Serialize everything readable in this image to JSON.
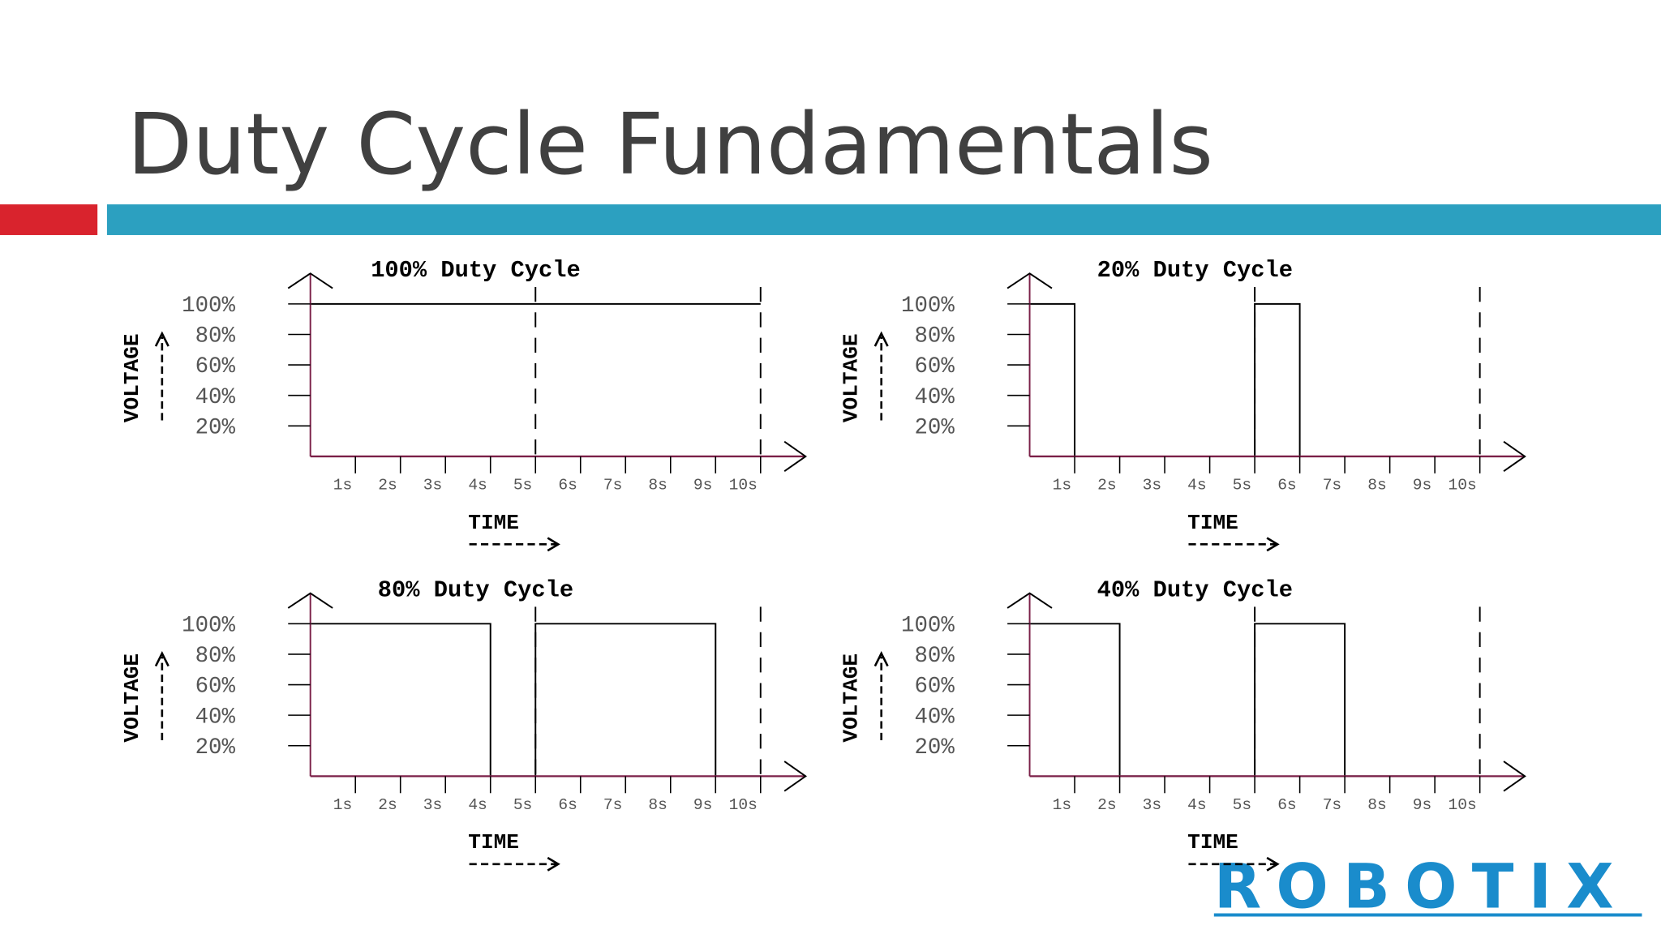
{
  "slide": {
    "title": "Duty Cycle Fundamentals",
    "logo": "ROBOTIX"
  },
  "chart_data": [
    {
      "type": "line",
      "title": "100% Duty Cycle",
      "y_label": "VOLTAGE",
      "x_label": "TIME",
      "x": [
        0,
        10
      ],
      "series": [
        {
          "color": "#000000",
          "values": [
            100,
            100
          ]
        }
      ],
      "period_marks": [
        5,
        10
      ],
      "axis_color": "#7b2048",
      "xlim": [
        0,
        11
      ],
      "xticks": [
        {
          "value": 1,
          "label": "1s"
        },
        {
          "value": 2,
          "label": "2s"
        },
        {
          "value": 3,
          "label": "3s"
        },
        {
          "value": 4,
          "label": "4s"
        },
        {
          "value": 5,
          "label": "5s"
        },
        {
          "value": 6,
          "label": "6s"
        },
        {
          "value": 7,
          "label": "7s"
        },
        {
          "value": 8,
          "label": "8s"
        },
        {
          "value": 9,
          "label": "9s"
        },
        {
          "value": 10,
          "label": "10s"
        }
      ],
      "ylim": [
        0,
        120
      ],
      "yticks": [
        {
          "value": 20,
          "label": "20%"
        },
        {
          "value": 40,
          "label": "40%"
        },
        {
          "value": 60,
          "label": "60%"
        },
        {
          "value": 80,
          "label": "80%"
        },
        {
          "value": 100,
          "label": "100%"
        }
      ]
    },
    {
      "type": "line",
      "title": "20% Duty Cycle",
      "y_label": "VOLTAGE",
      "x_label": "TIME",
      "x": [
        0,
        1,
        1,
        5,
        5,
        6,
        6,
        10
      ],
      "series": [
        {
          "color": "#000000",
          "values": [
            100,
            100,
            0,
            0,
            100,
            100,
            0,
            0
          ]
        }
      ],
      "period_marks": [
        5,
        10
      ],
      "axis_color": "#7b2048",
      "xlim": [
        0,
        11
      ],
      "xticks": [
        {
          "value": 1,
          "label": "1s"
        },
        {
          "value": 2,
          "label": "2s"
        },
        {
          "value": 3,
          "label": "3s"
        },
        {
          "value": 4,
          "label": "4s"
        },
        {
          "value": 5,
          "label": "5s"
        },
        {
          "value": 6,
          "label": "6s"
        },
        {
          "value": 7,
          "label": "7s"
        },
        {
          "value": 8,
          "label": "8s"
        },
        {
          "value": 9,
          "label": "9s"
        },
        {
          "value": 10,
          "label": "10s"
        }
      ],
      "ylim": [
        0,
        120
      ],
      "yticks": [
        {
          "value": 20,
          "label": "20%"
        },
        {
          "value": 40,
          "label": "40%"
        },
        {
          "value": 60,
          "label": "60%"
        },
        {
          "value": 80,
          "label": "80%"
        },
        {
          "value": 100,
          "label": "100%"
        }
      ]
    },
    {
      "type": "line",
      "title": "80% Duty Cycle",
      "y_label": "VOLTAGE",
      "x_label": "TIME",
      "x": [
        0,
        4,
        4,
        5,
        5,
        9,
        9,
        10
      ],
      "series": [
        {
          "color": "#000000",
          "values": [
            100,
            100,
            0,
            0,
            100,
            100,
            0,
            0
          ]
        }
      ],
      "period_marks": [
        5,
        10
      ],
      "axis_color": "#7b2048",
      "xlim": [
        0,
        11
      ],
      "xticks": [
        {
          "value": 1,
          "label": "1s"
        },
        {
          "value": 2,
          "label": "2s"
        },
        {
          "value": 3,
          "label": "3s"
        },
        {
          "value": 4,
          "label": "4s"
        },
        {
          "value": 5,
          "label": "5s"
        },
        {
          "value": 6,
          "label": "6s"
        },
        {
          "value": 7,
          "label": "7s"
        },
        {
          "value": 8,
          "label": "8s"
        },
        {
          "value": 9,
          "label": "9s"
        },
        {
          "value": 10,
          "label": "10s"
        }
      ],
      "ylim": [
        0,
        120
      ],
      "yticks": [
        {
          "value": 20,
          "label": "20%"
        },
        {
          "value": 40,
          "label": "40%"
        },
        {
          "value": 60,
          "label": "60%"
        },
        {
          "value": 80,
          "label": "80%"
        },
        {
          "value": 100,
          "label": "100%"
        }
      ]
    },
    {
      "type": "line",
      "title": "40% Duty Cycle",
      "y_label": "VOLTAGE",
      "x_label": "TIME",
      "x": [
        0,
        2,
        2,
        5,
        5,
        7,
        7,
        10
      ],
      "series": [
        {
          "color": "#000000",
          "values": [
            100,
            100,
            0,
            0,
            100,
            100,
            0,
            0
          ]
        }
      ],
      "period_marks": [
        5,
        10
      ],
      "axis_color": "#7b2048",
      "xlim": [
        0,
        11
      ],
      "xticks": [
        {
          "value": 1,
          "label": "1s"
        },
        {
          "value": 2,
          "label": "2s"
        },
        {
          "value": 3,
          "label": "3s"
        },
        {
          "value": 4,
          "label": "4s"
        },
        {
          "value": 5,
          "label": "5s"
        },
        {
          "value": 6,
          "label": "6s"
        },
        {
          "value": 7,
          "label": "7s"
        },
        {
          "value": 8,
          "label": "8s"
        },
        {
          "value": 9,
          "label": "9s"
        },
        {
          "value": 10,
          "label": "10s"
        }
      ],
      "ylim": [
        0,
        120
      ],
      "yticks": [
        {
          "value": 20,
          "label": "20%"
        },
        {
          "value": 40,
          "label": "40%"
        },
        {
          "value": 60,
          "label": "60%"
        },
        {
          "value": 80,
          "label": "80%"
        },
        {
          "value": 100,
          "label": "100%"
        }
      ]
    }
  ]
}
